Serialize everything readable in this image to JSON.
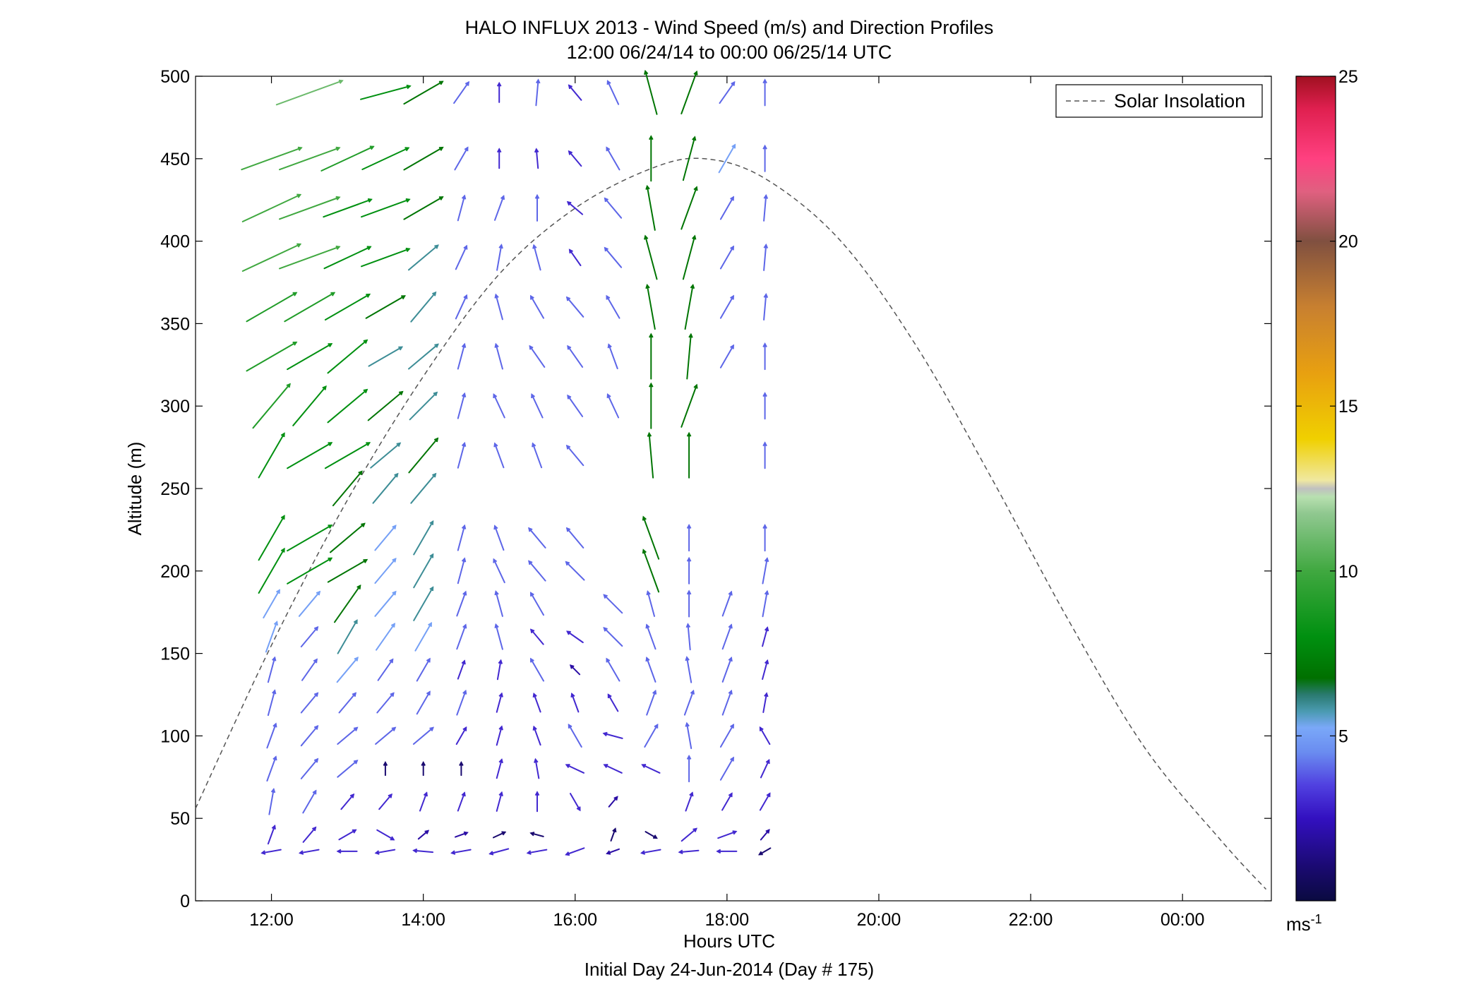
{
  "chart_data": {
    "type": "scatter",
    "title": "HALO INFLUX 2013 - Wind Speed (m/s) and Direction Profiles",
    "subtitle": "12:00 06/24/14 to 00:00 06/25/14  UTC",
    "xlabel": "Hours UTC",
    "xlabel2": "Initial Day 24-Jun-2014 (Day # 175)",
    "ylabel": "Altitude (m)",
    "xlim": [
      "11:00",
      "01:10"
    ],
    "x_range_hours": [
      11.0,
      25.17
    ],
    "ylim": [
      0,
      500
    ],
    "x_ticks": [
      {
        "hour": 12,
        "label": "12:00"
      },
      {
        "hour": 14,
        "label": "14:00"
      },
      {
        "hour": 16,
        "label": "16:00"
      },
      {
        "hour": 18,
        "label": "18:00"
      },
      {
        "hour": 20,
        "label": "20:00"
      },
      {
        "hour": 22,
        "label": "22:00"
      },
      {
        "hour": 24,
        "label": "00:00"
      }
    ],
    "y_ticks": [
      0,
      50,
      100,
      150,
      200,
      250,
      300,
      350,
      400,
      450,
      500
    ],
    "grid": false,
    "legend": {
      "position": "top-right",
      "entries": [
        "Solar Insolation"
      ]
    },
    "colorbar": {
      "ticks": [
        5,
        10,
        15,
        20,
        25
      ],
      "range": [
        0,
        25
      ],
      "unit_label": "ms",
      "unit_exponent": "-1"
    },
    "solar_insolation": {
      "style": "dashed",
      "color": "#555555",
      "x": [
        11.0,
        12.0,
        13.0,
        14.0,
        15.0,
        16.0,
        17.0,
        17.7,
        18.5,
        19.5,
        20.5,
        21.5,
        22.5,
        23.5,
        24.5,
        25.1
      ],
      "y": [
        56,
        155,
        243,
        318,
        380,
        420,
        444,
        450,
        438,
        400,
        336,
        255,
        170,
        93,
        37,
        7
      ]
    },
    "wind_profiles": {
      "times": [
        12.0,
        12.5,
        13.0,
        13.5,
        14.0,
        14.5,
        15.0,
        15.5,
        16.0,
        16.5,
        17.0,
        17.5,
        18.0,
        18.5
      ],
      "altitudes": [
        30,
        40,
        60,
        80,
        100,
        120,
        140,
        160,
        180,
        200,
        220,
        250,
        270,
        300,
        330,
        360,
        390,
        420,
        450,
        490
      ],
      "direction_convention": "meteorological (degrees from)",
      "speed": [
        [
          3,
          3,
          3,
          3,
          3,
          3,
          3,
          3,
          3,
          2,
          3,
          3,
          3,
          1
        ],
        [
          3,
          3,
          3,
          3,
          2,
          2,
          1,
          1,
          null,
          1,
          1,
          3,
          3,
          2
        ],
        [
          4,
          4,
          3,
          3,
          3,
          3,
          3,
          3,
          3,
          2,
          null,
          3,
          3,
          3
        ],
        [
          4,
          4,
          4,
          1,
          1,
          1,
          3,
          3,
          3,
          3,
          3,
          4,
          4,
          3
        ],
        [
          4,
          4,
          4,
          4,
          4,
          3,
          3,
          3,
          4,
          3,
          4,
          4,
          4,
          3
        ],
        [
          4,
          4,
          4,
          4,
          4,
          4,
          3,
          3,
          3,
          3,
          4,
          4,
          4,
          3
        ],
        [
          4,
          4,
          5,
          4,
          4,
          3,
          3,
          4,
          2,
          4,
          4,
          4,
          4,
          3
        ],
        [
          5,
          4,
          6,
          5,
          5,
          4,
          4,
          3,
          3,
          4,
          4,
          4,
          4,
          3
        ],
        [
          5,
          5,
          7,
          5,
          6,
          4,
          4,
          4,
          null,
          4,
          4,
          4,
          4,
          4
        ],
        [
          8,
          8,
          7,
          5,
          6,
          4,
          4,
          4,
          4,
          null,
          7,
          4,
          null,
          4
        ],
        [
          8,
          8,
          7,
          5,
          6,
          4,
          4,
          4,
          4,
          null,
          7,
          4,
          null,
          4
        ],
        [
          null,
          null,
          7,
          6,
          6,
          null,
          null,
          null,
          null,
          null,
          null,
          null,
          null,
          null
        ],
        [
          8,
          8,
          8,
          6,
          7,
          4,
          4,
          4,
          4,
          null,
          7,
          7,
          null,
          4
        ],
        [
          9,
          8,
          8,
          7,
          6,
          4,
          4,
          4,
          4,
          4,
          7,
          7,
          null,
          4
        ],
        [
          9,
          8,
          8,
          6,
          6,
          4,
          4,
          4,
          4,
          4,
          7,
          7,
          4,
          4
        ],
        [
          9,
          9,
          8,
          7,
          6,
          4,
          4,
          4,
          4,
          4,
          7,
          7,
          4,
          4
        ],
        [
          10,
          10,
          8,
          8,
          6,
          4,
          4,
          4,
          3,
          4,
          7,
          7,
          4,
          4
        ],
        [
          10,
          10,
          8,
          8,
          7,
          4,
          4,
          4,
          3,
          4,
          7,
          7,
          4,
          4
        ],
        [
          10,
          10,
          9,
          8,
          7,
          4,
          3,
          3,
          3,
          4,
          7,
          7,
          5,
          4
        ],
        [
          null,
          11,
          null,
          8,
          7,
          4,
          3,
          4,
          3,
          4,
          7,
          7,
          4,
          4
        ]
      ],
      "direction": [
        [
          80,
          80,
          90,
          80,
          95,
          80,
          75,
          80,
          70,
          70,
          80,
          85,
          90,
          60
        ],
        [
          200,
          220,
          240,
          300,
          230,
          250,
          245,
          105,
          null,
          200,
          300,
          230,
          250,
          220
        ],
        [
          190,
          210,
          220,
          220,
          200,
          200,
          195,
          180,
          330,
          220,
          null,
          200,
          210,
          210
        ],
        [
          200,
          220,
          230,
          180,
          180,
          180,
          195,
          170,
          115,
          115,
          115,
          180,
          210,
          205
        ],
        [
          200,
          220,
          230,
          230,
          230,
          210,
          195,
          160,
          150,
          105,
          210,
          170,
          210,
          150
        ],
        [
          195,
          220,
          220,
          220,
          210,
          200,
          195,
          160,
          160,
          150,
          200,
          200,
          200,
          190
        ],
        [
          195,
          215,
          220,
          215,
          210,
          200,
          190,
          150,
          135,
          150,
          160,
          170,
          200,
          195
        ],
        [
          200,
          220,
          210,
          215,
          210,
          200,
          165,
          140,
          125,
          135,
          160,
          175,
          200,
          195
        ],
        [
          210,
          220,
          215,
          220,
          210,
          200,
          165,
          150,
          130,
          135,
          165,
          180,
          200,
          190
        ],
        [
          210,
          240,
          240,
          220,
          210,
          195,
          155,
          140,
          135,
          null,
          160,
          180,
          null,
          190
        ],
        [
          210,
          240,
          230,
          220,
          210,
          195,
          160,
          140,
          140,
          null,
          160,
          180,
          null,
          180
        ],
        [
          null,
          null,
          220,
          220,
          220,
          null,
          null,
          null,
          null,
          null,
          null,
          null,
          null,
          null
        ],
        [
          210,
          240,
          240,
          230,
          220,
          195,
          160,
          160,
          140,
          null,
          175,
          180,
          null,
          180
        ],
        [
          220,
          220,
          230,
          230,
          225,
          195,
          155,
          155,
          145,
          155,
          180,
          200,
          null,
          180
        ],
        [
          240,
          240,
          230,
          240,
          230,
          195,
          165,
          145,
          145,
          160,
          180,
          185,
          210,
          180
        ],
        [
          240,
          240,
          240,
          240,
          220,
          205,
          165,
          150,
          140,
          150,
          170,
          190,
          210,
          185
        ],
        [
          245,
          250,
          245,
          250,
          230,
          205,
          190,
          165,
          145,
          140,
          165,
          195,
          210,
          185
        ],
        [
          245,
          250,
          250,
          250,
          240,
          195,
          200,
          180,
          130,
          140,
          170,
          200,
          210,
          185
        ],
        [
          250,
          250,
          245,
          245,
          240,
          210,
          180,
          175,
          140,
          150,
          180,
          195,
          210,
          180
        ],
        [
          null,
          250,
          null,
          255,
          240,
          215,
          180,
          185,
          140,
          155,
          165,
          200,
          215,
          180
        ]
      ]
    }
  }
}
